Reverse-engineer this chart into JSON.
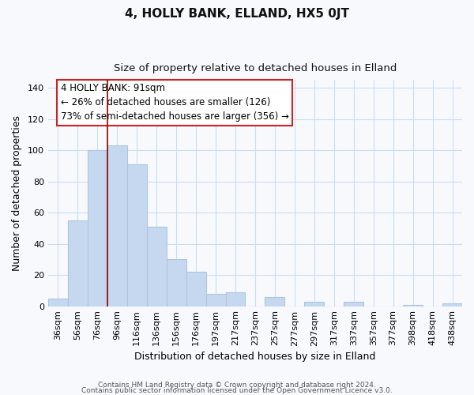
{
  "title": "4, HOLLY BANK, ELLAND, HX5 0JT",
  "subtitle": "Size of property relative to detached houses in Elland",
  "xlabel": "Distribution of detached houses by size in Elland",
  "ylabel": "Number of detached properties",
  "bar_labels": [
    "36sqm",
    "56sqm",
    "76sqm",
    "96sqm",
    "116sqm",
    "136sqm",
    "156sqm",
    "176sqm",
    "197sqm",
    "217sqm",
    "237sqm",
    "257sqm",
    "277sqm",
    "297sqm",
    "317sqm",
    "337sqm",
    "357sqm",
    "377sqm",
    "398sqm",
    "418sqm",
    "438sqm"
  ],
  "bar_values": [
    5,
    55,
    100,
    103,
    91,
    51,
    30,
    22,
    8,
    9,
    0,
    6,
    0,
    3,
    0,
    3,
    0,
    0,
    1,
    0,
    2
  ],
  "bar_color": "#c5d8f0",
  "bar_edge_color": "#aec6e0",
  "vline_x_index": 3,
  "vline_color": "#8b0000",
  "ylim": [
    0,
    145
  ],
  "yticks": [
    0,
    20,
    40,
    60,
    80,
    100,
    120,
    140
  ],
  "annotation_title": "4 HOLLY BANK: 91sqm",
  "annotation_line1": "← 26% of detached houses are smaller (126)",
  "annotation_line2": "73% of semi-detached houses are larger (356) →",
  "footer_line1": "Contains HM Land Registry data © Crown copyright and database right 2024.",
  "footer_line2": "Contains public sector information licensed under the Open Government Licence v3.0.",
  "background_color": "#f7f9fd",
  "grid_color": "#ccddf0",
  "title_fontsize": 11,
  "subtitle_fontsize": 9.5,
  "axis_label_fontsize": 9,
  "tick_fontsize": 8,
  "annotation_fontsize": 8.5,
  "footer_fontsize": 6.5
}
